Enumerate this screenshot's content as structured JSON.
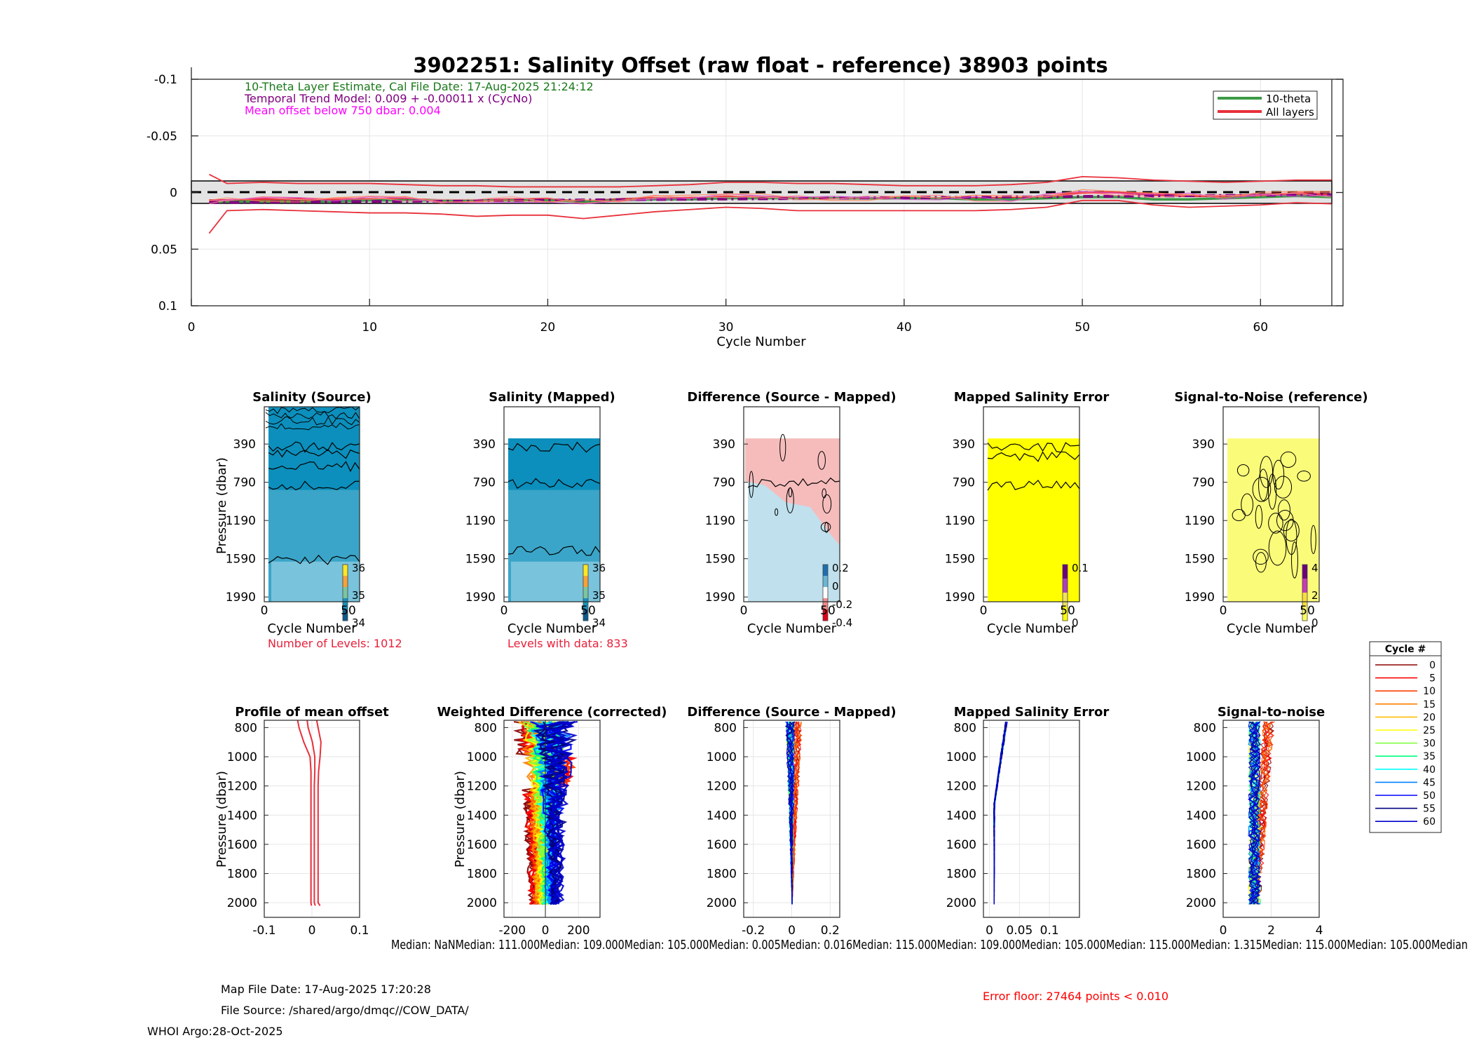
{
  "figure_title": "3902251: Salinity Offset (raw float - reference)   38903 points",
  "top_panel": {
    "annotations": [
      {
        "text": "10-Theta Layer Estimate, Cal File Date: 17-Aug-2025 21:24:12",
        "color": "#1a7a1a"
      },
      {
        "text": "Temporal Trend Model: 0.009 + -0.00011 x (CycNo)",
        "color": "#800080"
      },
      {
        "text": "Mean offset below 750 dbar: 0.004",
        "color": "#ff00ff"
      }
    ],
    "legend": [
      {
        "label": "10-theta",
        "color": "#3c9b46"
      },
      {
        "label": "All layers",
        "color": "#e8303a"
      }
    ],
    "xlabel": "Cycle Number",
    "xticks": [
      "0",
      "10",
      "20",
      "30",
      "40",
      "50",
      "60"
    ],
    "yticks": [
      "-0.1",
      "-0.05",
      "0",
      "0.05",
      "0.1"
    ]
  },
  "row2": {
    "panels": [
      {
        "title": "Salinity (Source)",
        "xlabel": "Cycle Number",
        "ylabel": "Pressure (dbar)",
        "cbar_ticks": [
          "36",
          "35",
          "34"
        ]
      },
      {
        "title": "Salinity (Mapped)",
        "xlabel": "Cycle Number",
        "cbar_ticks": [
          "36",
          "35",
          "34"
        ]
      },
      {
        "title": "Difference (Source - Mapped)",
        "xlabel": "Cycle Number",
        "cbar_ticks": [
          "0.2",
          "0",
          "-0.2",
          "-0.4"
        ]
      },
      {
        "title": "Mapped Salinity Error",
        "xlabel": "Cycle Number",
        "cbar_ticks": [
          "0.1",
          "0"
        ]
      },
      {
        "title": "Signal-to-Noise (reference)",
        "xlabel": "Cycle Number",
        "cbar_ticks": [
          "4",
          "2",
          "0"
        ]
      }
    ],
    "yticks": [
      "390",
      "790",
      "1190",
      "1590",
      "1990"
    ],
    "xticks": [
      "0",
      "50"
    ],
    "notes": [
      "Number of Levels: 1012",
      "Levels with data: 833"
    ]
  },
  "row3": {
    "panels": [
      {
        "title": "Profile of mean offset",
        "ylabel": "Pressure (dbar)",
        "xticks": [
          "-0.1",
          "0",
          "0.1"
        ]
      },
      {
        "title": "Weighted Difference (corrected)",
        "ylabel": "Pressure (dbar)",
        "xticks": [
          "-200",
          "0",
          "200"
        ]
      },
      {
        "title": "Difference (Source - Mapped)",
        "xticks": [
          "-0.2",
          "0",
          "0.2"
        ]
      },
      {
        "title": "Mapped Salinity Error",
        "xticks": [
          "0",
          "0.05",
          "0.1"
        ]
      },
      {
        "title": "Signal-to-noise",
        "xticks": [
          "0",
          "2",
          "4"
        ]
      }
    ],
    "yticks": [
      "800",
      "1000",
      "1200",
      "1400",
      "1600",
      "1800",
      "2000"
    ],
    "medians": "Median:     NaNMedian: 111.000Median: 109.000Median: 105.000Median: 0.005Median: 0.016Median: 115.000Median: 109.000Median: 105.000Median: 115.000Median: 1.315Median: 115.000Median: 105.000Median"
  },
  "cycle_legend": {
    "title": "Cycle #",
    "entries": [
      {
        "label": "0",
        "color": "#8b0000"
      },
      {
        "label": "5",
        "color": "#ff0000"
      },
      {
        "label": "10",
        "color": "#ff4000"
      },
      {
        "label": "15",
        "color": "#ff8000"
      },
      {
        "label": "20",
        "color": "#ffbf00"
      },
      {
        "label": "25",
        "color": "#ffff00"
      },
      {
        "label": "30",
        "color": "#80ff40"
      },
      {
        "label": "35",
        "color": "#00ff80"
      },
      {
        "label": "40",
        "color": "#00ffff"
      },
      {
        "label": "45",
        "color": "#0080ff"
      },
      {
        "label": "50",
        "color": "#0000ff"
      },
      {
        "label": "55",
        "color": "#000080"
      },
      {
        "label": "60",
        "color": "#0000cd"
      }
    ]
  },
  "footer": {
    "map_file_date": "Map File Date: 17-Aug-2025 17:20:28",
    "file_source": "File Source: /shared/argo/dmqc//COW_DATA/",
    "whoi": "WHOI Argo:28-Oct-2025",
    "error_floor": "Error floor: 27464 points < 0.010"
  },
  "chart_data": [
    {
      "type": "line",
      "title": "3902251: Salinity Offset (raw float - reference)   38903 points",
      "xlabel": "Cycle Number",
      "ylabel": "",
      "xlim": [
        0,
        64
      ],
      "ylim": [
        -0.1,
        0.1
      ],
      "y_reversed": true,
      "x": [
        1,
        2,
        4,
        6,
        8,
        10,
        12,
        14,
        16,
        18,
        20,
        22,
        24,
        26,
        28,
        30,
        32,
        34,
        36,
        38,
        40,
        42,
        44,
        46,
        48,
        50,
        52,
        54,
        56,
        58,
        60,
        62,
        64
      ],
      "series": [
        {
          "name": "All layers (mean)",
          "values": [
            0.007,
            0.007,
            0.006,
            0.006,
            0.006,
            0.006,
            0.006,
            0.007,
            0.007,
            0.006,
            0.006,
            0.008,
            0.006,
            0.005,
            0.005,
            0.004,
            0.004,
            0.005,
            0.005,
            0.005,
            0.005,
            0.005,
            0.005,
            0.005,
            0.004,
            0.0,
            0.0,
            0.002,
            0.003,
            0.003,
            0.002,
            0.001,
            0.002
          ]
        },
        {
          "name": "All layers (upper bound)",
          "values": [
            -0.016,
            -0.008,
            -0.009,
            -0.008,
            -0.008,
            -0.008,
            -0.007,
            -0.006,
            -0.006,
            -0.005,
            -0.005,
            -0.005,
            -0.005,
            -0.006,
            -0.007,
            -0.009,
            -0.009,
            -0.008,
            -0.008,
            -0.007,
            -0.006,
            -0.006,
            -0.006,
            -0.007,
            -0.009,
            -0.014,
            -0.013,
            -0.011,
            -0.01,
            -0.009,
            -0.01,
            -0.011,
            -0.011
          ]
        },
        {
          "name": "All layers (lower bound)",
          "values": [
            0.036,
            0.016,
            0.015,
            0.016,
            0.017,
            0.018,
            0.018,
            0.019,
            0.021,
            0.02,
            0.02,
            0.023,
            0.02,
            0.017,
            0.015,
            0.013,
            0.014,
            0.016,
            0.016,
            0.016,
            0.016,
            0.016,
            0.016,
            0.015,
            0.013,
            0.007,
            0.007,
            0.011,
            0.013,
            0.012,
            0.011,
            0.009,
            0.01
          ]
        },
        {
          "name": "10-theta",
          "values": [
            0.009,
            0.008,
            0.008,
            0.008,
            0.008,
            0.007,
            0.007,
            0.007,
            0.007,
            0.007,
            0.007,
            0.008,
            0.007,
            0.006,
            0.006,
            0.005,
            0.005,
            0.005,
            0.005,
            0.005,
            0.005,
            0.005,
            0.006,
            0.006,
            0.005,
            0.004,
            0.004,
            0.006,
            0.006,
            0.005,
            0.004,
            0.003,
            0.004
          ]
        },
        {
          "name": "Temporal trend",
          "values": [
            0.0089,
            0.0088,
            0.0086,
            0.0083,
            0.0081,
            0.0079,
            0.0077,
            0.0075,
            0.0072,
            0.007,
            0.0068,
            0.0066,
            0.0064,
            0.0061,
            0.0059,
            0.0057,
            0.0055,
            0.0053,
            0.005,
            0.0048,
            0.0046,
            0.0044,
            0.0042,
            0.0039,
            0.0037,
            0.0035,
            0.0033,
            0.0031,
            0.0028,
            0.0026,
            0.0024,
            0.0022,
            0.002
          ]
        }
      ],
      "error_band": [
        -0.01,
        0.01
      ]
    },
    {
      "type": "line",
      "title": "Profile of mean offset",
      "ylabel": "Pressure (dbar)",
      "xlim": [
        -0.1,
        0.1
      ],
      "ylim": [
        750,
        2100
      ],
      "pressure": [
        750,
        800,
        900,
        1000,
        1100,
        1200,
        1400,
        1600,
        1800,
        2000,
        2020
      ],
      "series": [
        {
          "name": "mean",
          "values": [
            -0.01,
            -0.008,
            0.001,
            0.006,
            0.006,
            0.005,
            0.005,
            0.005,
            0.005,
            0.005,
            0.007
          ]
        },
        {
          "name": "mean - std",
          "values": [
            -0.03,
            -0.027,
            -0.017,
            -0.004,
            -0.002,
            -0.002,
            -0.002,
            -0.002,
            -0.002,
            -0.002,
            -0.001
          ]
        },
        {
          "name": "mean + std",
          "values": [
            0.01,
            0.013,
            0.019,
            0.017,
            0.014,
            0.013,
            0.013,
            0.013,
            0.013,
            0.013,
            0.017
          ]
        }
      ]
    }
  ]
}
